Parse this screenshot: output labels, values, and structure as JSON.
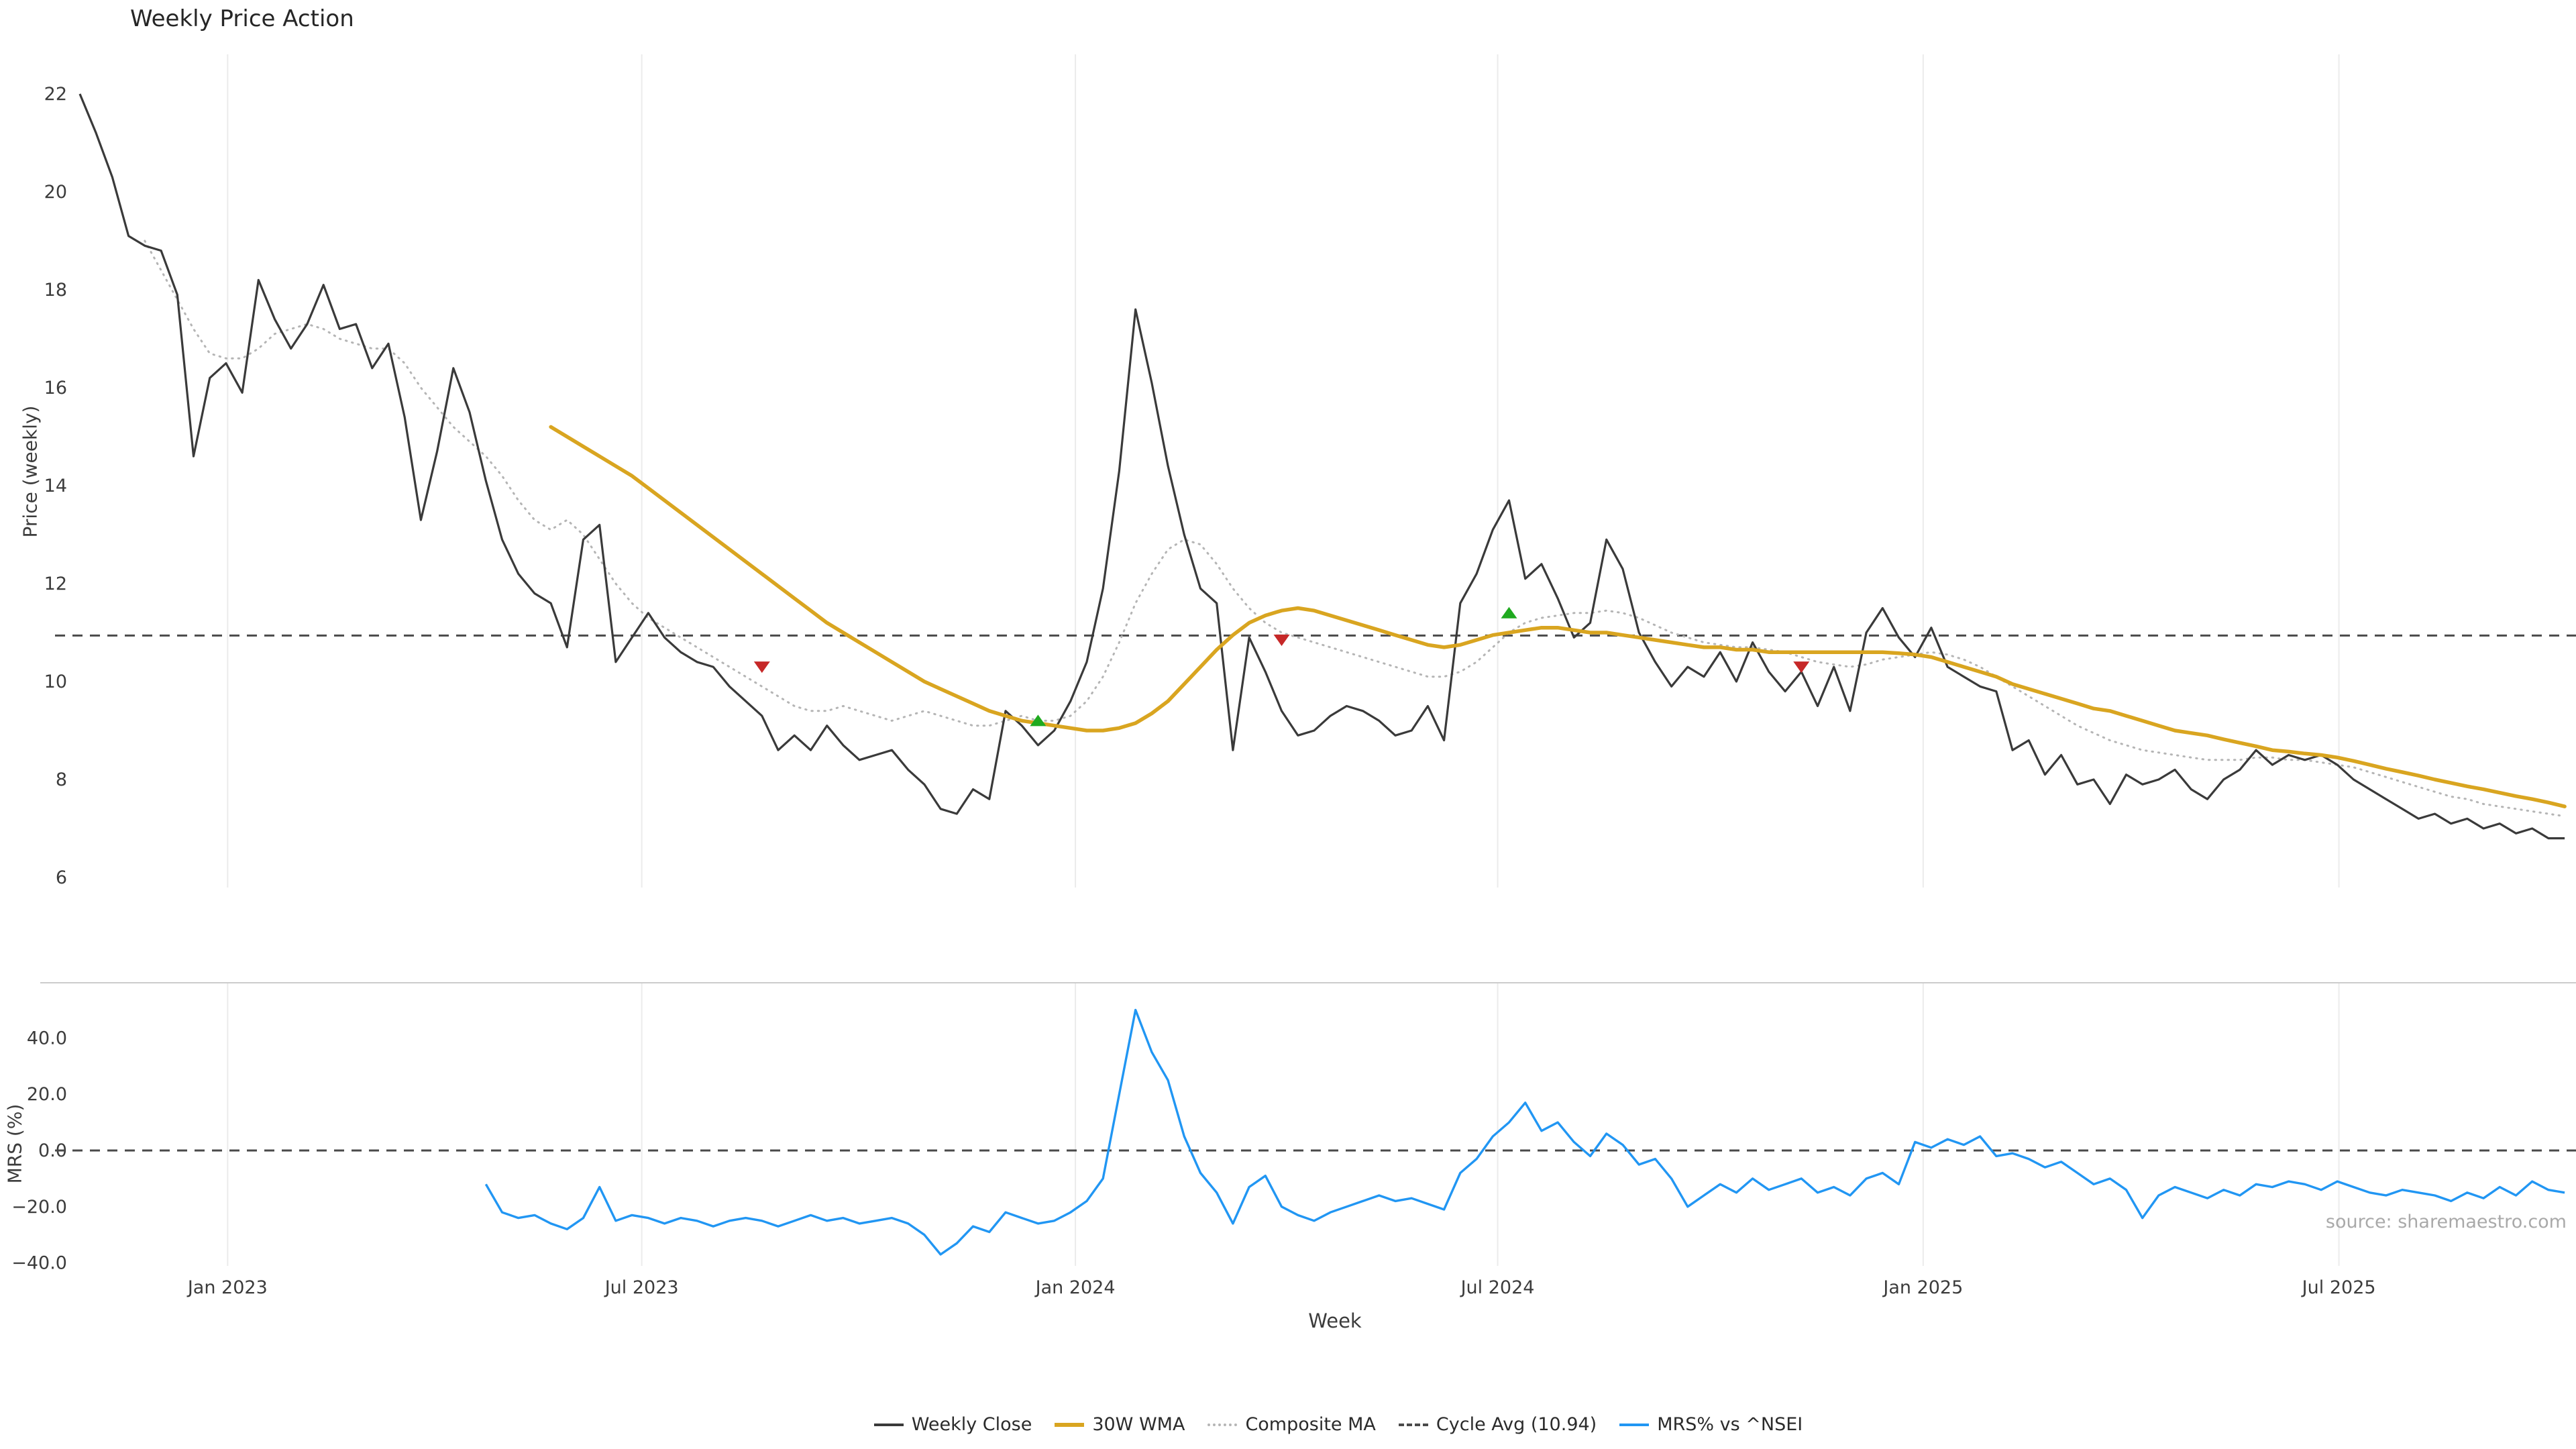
{
  "source_note": "source: sharemaestro.com",
  "legend": [
    {
      "label": "Weekly Close",
      "color": "#3a3a3a",
      "style": "solid"
    },
    {
      "label": "30W WMA",
      "color": "#d9a520",
      "style": "solid"
    },
    {
      "label": "Composite MA",
      "color": "#b5b5b5",
      "style": "dotted"
    },
    {
      "label": "Cycle Avg (10.94)",
      "color": "#4a4a4a",
      "style": "dashed"
    },
    {
      "label": "MRS% vs ^NSEI",
      "color": "#2196f3",
      "style": "solid"
    }
  ],
  "chart_data": [
    {
      "type": "line",
      "title": "Weekly Price Action",
      "xlabel": "",
      "ylabel": "Price (weekly)",
      "ylim": [
        5.8,
        22.8
      ],
      "yticks": [
        6,
        8,
        10,
        12,
        14,
        16,
        18,
        20,
        22
      ],
      "grid": "vertical-only",
      "legend_position": "bottom-center",
      "cycle_avg": 10.94,
      "x_ticks": [
        {
          "label": "Jan 2023",
          "week": 9.1
        },
        {
          "label": "Jul 2023",
          "week": 34.6
        },
        {
          "label": "Jan 2024",
          "week": 61.3
        },
        {
          "label": "Jul 2024",
          "week": 87.3
        },
        {
          "label": "Jan 2025",
          "week": 113.5
        },
        {
          "label": "Jul 2025",
          "week": 139.1
        }
      ],
      "series": [
        {
          "name": "Weekly Close",
          "color": "#3a3a3a",
          "style": "solid",
          "start_week": 0,
          "values": [
            22.0,
            21.2,
            20.3,
            19.1,
            18.9,
            18.8,
            17.9,
            14.6,
            16.2,
            16.5,
            15.9,
            18.2,
            17.4,
            16.8,
            17.3,
            18.1,
            17.2,
            17.3,
            16.4,
            16.9,
            15.4,
            13.3,
            14.7,
            16.4,
            15.5,
            14.1,
            12.9,
            12.2,
            11.8,
            11.6,
            10.7,
            12.9,
            13.2,
            10.4,
            10.9,
            11.4,
            10.9,
            10.6,
            10.4,
            10.3,
            9.9,
            9.6,
            9.3,
            8.6,
            8.9,
            8.6,
            9.1,
            8.7,
            8.4,
            8.5,
            8.6,
            8.2,
            7.9,
            7.4,
            7.3,
            7.8,
            7.6,
            9.4,
            9.1,
            8.7,
            9.0,
            9.6,
            10.4,
            11.9,
            14.3,
            17.6,
            16.1,
            14.4,
            13.0,
            11.9,
            11.6,
            8.6,
            10.9,
            10.2,
            9.4,
            8.9,
            9.0,
            9.3,
            9.5,
            9.4,
            9.2,
            8.9,
            9.0,
            9.5,
            8.8,
            11.6,
            12.2,
            13.1,
            13.7,
            12.1,
            12.4,
            11.7,
            10.9,
            11.2,
            12.9,
            12.3,
            11.0,
            10.4,
            9.9,
            10.3,
            10.1,
            10.6,
            10.0,
            10.8,
            10.2,
            9.8,
            10.2,
            9.5,
            10.3,
            9.4,
            11.0,
            11.5,
            10.9,
            10.5,
            11.1,
            10.3,
            10.1,
            9.9,
            9.8,
            8.6,
            8.8,
            8.1,
            8.5,
            7.9,
            8.0,
            7.5,
            8.1,
            7.9,
            8.0,
            8.2,
            7.8,
            7.6,
            8.0,
            8.2,
            8.6,
            8.3,
            8.5,
            8.4,
            8.5,
            8.3,
            8.0,
            7.8,
            7.6,
            7.4,
            7.2,
            7.3,
            7.1,
            7.2,
            7.0,
            7.1,
            6.9,
            7.0,
            6.8,
            6.8
          ]
        },
        {
          "name": "30W WMA",
          "color": "#d9a520",
          "style": "solid",
          "start_week": 29,
          "values": [
            15.2,
            15.0,
            14.8,
            14.6,
            14.4,
            14.2,
            13.95,
            13.7,
            13.45,
            13.2,
            12.95,
            12.7,
            12.45,
            12.2,
            11.95,
            11.7,
            11.45,
            11.2,
            11.0,
            10.8,
            10.6,
            10.4,
            10.2,
            10.0,
            9.85,
            9.7,
            9.55,
            9.4,
            9.3,
            9.2,
            9.15,
            9.1,
            9.05,
            9.0,
            9.0,
            9.05,
            9.15,
            9.35,
            9.6,
            9.95,
            10.3,
            10.65,
            10.95,
            11.2,
            11.35,
            11.45,
            11.5,
            11.45,
            11.35,
            11.25,
            11.15,
            11.05,
            10.95,
            10.85,
            10.75,
            10.7,
            10.75,
            10.85,
            10.95,
            11.0,
            11.05,
            11.1,
            11.1,
            11.05,
            11.0,
            11.0,
            10.95,
            10.9,
            10.85,
            10.8,
            10.75,
            10.7,
            10.7,
            10.65,
            10.65,
            10.6,
            10.6,
            10.6,
            10.6,
            10.6,
            10.6,
            10.6,
            10.6,
            10.58,
            10.55,
            10.5,
            10.4,
            10.3,
            10.2,
            10.1,
            9.95,
            9.85,
            9.75,
            9.65,
            9.55,
            9.45,
            9.4,
            9.3,
            9.2,
            9.1,
            9.0,
            8.95,
            8.9,
            8.82,
            8.75,
            8.68,
            8.6,
            8.57,
            8.53,
            8.5,
            8.45,
            8.38,
            8.3,
            8.22,
            8.15,
            8.08,
            8.0,
            7.93,
            7.86,
            7.8,
            7.73,
            7.66,
            7.6,
            7.53,
            7.45
          ]
        },
        {
          "name": "Composite MA",
          "color": "#b5b5b5",
          "style": "dotted",
          "start_week": 4,
          "values": [
            19.0,
            18.4,
            17.8,
            17.2,
            16.7,
            16.6,
            16.6,
            16.8,
            17.1,
            17.2,
            17.3,
            17.2,
            17.0,
            16.9,
            16.8,
            16.8,
            16.5,
            16.0,
            15.6,
            15.2,
            14.9,
            14.6,
            14.2,
            13.7,
            13.3,
            13.1,
            13.3,
            13.0,
            12.5,
            12.0,
            11.6,
            11.3,
            11.1,
            10.9,
            10.7,
            10.5,
            10.3,
            10.1,
            9.9,
            9.7,
            9.5,
            9.4,
            9.4,
            9.5,
            9.4,
            9.3,
            9.2,
            9.3,
            9.4,
            9.3,
            9.2,
            9.1,
            9.1,
            9.2,
            9.3,
            9.2,
            9.2,
            9.3,
            9.6,
            10.1,
            10.8,
            11.6,
            12.2,
            12.7,
            12.9,
            12.8,
            12.4,
            11.9,
            11.5,
            11.2,
            11.0,
            10.9,
            10.8,
            10.7,
            10.6,
            10.5,
            10.4,
            10.3,
            10.2,
            10.1,
            10.1,
            10.2,
            10.4,
            10.7,
            11.0,
            11.2,
            11.3,
            11.35,
            11.4,
            11.4,
            11.45,
            11.4,
            11.3,
            11.15,
            11.0,
            10.9,
            10.8,
            10.75,
            10.7,
            10.7,
            10.65,
            10.6,
            10.5,
            10.4,
            10.35,
            10.3,
            10.35,
            10.45,
            10.5,
            10.55,
            10.6,
            10.55,
            10.45,
            10.3,
            10.1,
            9.9,
            9.7,
            9.5,
            9.3,
            9.1,
            8.95,
            8.8,
            8.7,
            8.6,
            8.55,
            8.5,
            8.45,
            8.4,
            8.4,
            8.4,
            8.45,
            8.45,
            8.4,
            8.4,
            8.35,
            8.3,
            8.25,
            8.15,
            8.05,
            7.95,
            7.85,
            7.75,
            7.65,
            7.6,
            7.5,
            7.45,
            7.4,
            7.35,
            7.3,
            7.25
          ]
        }
      ],
      "markers": [
        {
          "type": "sell",
          "symbol": "triangle-down",
          "color": "#c62828",
          "week": 42,
          "price": 10.3
        },
        {
          "type": "buy",
          "symbol": "triangle-up",
          "color": "#1faa1f",
          "week": 59,
          "price": 9.2
        },
        {
          "type": "sell",
          "symbol": "triangle-down",
          "color": "#c62828",
          "week": 74,
          "price": 10.85
        },
        {
          "type": "buy",
          "symbol": "triangle-up",
          "color": "#1faa1f",
          "week": 88,
          "price": 11.4
        },
        {
          "type": "sell",
          "symbol": "triangle-down",
          "color": "#c62828",
          "week": 106,
          "price": 10.3
        }
      ]
    },
    {
      "type": "line",
      "title": "",
      "xlabel": "Week",
      "ylabel": "MRS (%)",
      "ylim": [
        -41,
        60
      ],
      "yticks": [
        -40,
        -20,
        0,
        20,
        40
      ],
      "ytick_labels": [
        "−40.0",
        "−20.0",
        "0.0",
        "20.0",
        "40.0"
      ],
      "hline": 0,
      "grid": "vertical-only",
      "series": [
        {
          "name": "MRS% vs ^NSEI",
          "color": "#2196f3",
          "style": "solid",
          "start_week": 25,
          "values": [
            -12,
            -22,
            -24,
            -23,
            -26,
            -28,
            -24,
            -13,
            -25,
            -23,
            -24,
            -26,
            -24,
            -25,
            -27,
            -25,
            -24,
            -25,
            -27,
            -25,
            -23,
            -25,
            -24,
            -26,
            -25,
            -24,
            -26,
            -30,
            -37,
            -33,
            -27,
            -29,
            -22,
            -24,
            -26,
            -25,
            -22,
            -18,
            -10,
            20,
            50,
            35,
            25,
            5,
            -8,
            -15,
            -26,
            -13,
            -9,
            -20,
            -23,
            -25,
            -22,
            -20,
            -18,
            -16,
            -18,
            -17,
            -19,
            -21,
            -8,
            -3,
            5,
            10,
            17,
            7,
            10,
            3,
            -2,
            6,
            2,
            -5,
            -3,
            -10,
            -20,
            -16,
            -12,
            -15,
            -10,
            -14,
            -12,
            -10,
            -15,
            -13,
            -16,
            -10,
            -8,
            -12,
            3,
            1,
            4,
            2,
            5,
            -2,
            -1,
            -3,
            -6,
            -4,
            -8,
            -12,
            -10,
            -14,
            -24,
            -16,
            -13,
            -15,
            -17,
            -14,
            -16,
            -12,
            -13,
            -11,
            -12,
            -14,
            -11,
            -13,
            -15,
            -16,
            -14,
            -15,
            -16,
            -18,
            -15,
            -17,
            -13,
            -16,
            -11,
            -14,
            -15
          ]
        }
      ]
    }
  ]
}
